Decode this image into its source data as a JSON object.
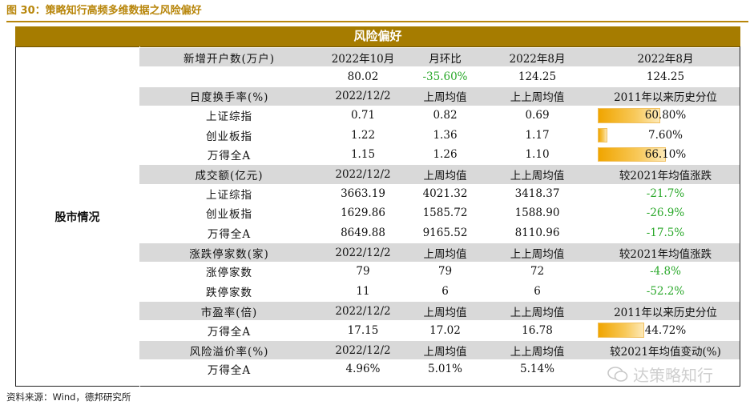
{
  "figure_title": "图 30：策略知行高频多维数据之风险偏好",
  "header": "风险偏好",
  "row_label": "股市情况",
  "sections": [
    {
      "header": [
        "新增开户数(万户)",
        "2022年10月",
        "月环比",
        "2022年8月",
        "2022年8月"
      ],
      "rows": [
        {
          "name": "",
          "v1": "80.02",
          "v2": "-35.60%",
          "v3": "124.25",
          "v4": "124.25",
          "v2_green": true
        }
      ]
    },
    {
      "header": [
        "日度换手率(%)",
        "2022/12/2",
        "上周均值",
        "上上周均值",
        "2011年以来历史分位"
      ],
      "rows": [
        {
          "name": "上证综指",
          "v1": "0.71",
          "v2": "0.82",
          "v3": "0.69",
          "v4": "60.80%",
          "pct": 0.608
        },
        {
          "name": "创业板指",
          "v1": "1.22",
          "v2": "1.36",
          "v3": "1.17",
          "v4": "7.60%",
          "pct": 0.076
        },
        {
          "name": "万得全A",
          "v1": "1.15",
          "v2": "1.26",
          "v3": "1.10",
          "v4": "66.10%",
          "pct": 0.661
        }
      ]
    },
    {
      "header": [
        "成交额(亿元)",
        "2022/12/2",
        "上周均值",
        "上上周均值",
        "较2021年均值涨跌"
      ],
      "rows": [
        {
          "name": "上证综指",
          "v1": "3663.19",
          "v2": "4021.32",
          "v3": "3418.37",
          "v4": "-21.7%",
          "v4_green": true
        },
        {
          "name": "创业板指",
          "v1": "1629.86",
          "v2": "1585.72",
          "v3": "1588.90",
          "v4": "-26.9%",
          "v4_green": true
        },
        {
          "name": "万得全A",
          "v1": "8649.88",
          "v2": "9165.52",
          "v3": "8110.96",
          "v4": "-17.5%",
          "v4_green": true
        }
      ]
    },
    {
      "header": [
        "涨跌停家数(家)",
        "2022/12/2",
        "上周均值",
        "上上周均值",
        "较2021年均值涨跌"
      ],
      "rows": [
        {
          "name": "涨停家数",
          "v1": "79",
          "v2": "79",
          "v3": "72",
          "v4": "-4.8%",
          "v4_green": true
        },
        {
          "name": "跌停家数",
          "v1": "11",
          "v2": "6",
          "v3": "6",
          "v4": "-52.2%",
          "v4_green": true
        }
      ]
    },
    {
      "header": [
        "市盈率(倍)",
        "2022/12/2",
        "上周均值",
        "上上周均值",
        "2011年以来历史分位"
      ],
      "rows": [
        {
          "name": "万得全A",
          "v1": "17.15",
          "v2": "17.02",
          "v3": "16.78",
          "v4": "44.72%",
          "pct": 0.4472
        }
      ]
    },
    {
      "header": [
        "风险溢价率(%)",
        "2022/12/2",
        "上周均值",
        "上上周均值",
        "较2021年均值变动(%)"
      ],
      "rows": [
        {
          "name": "万得全A",
          "v1": "4.96%",
          "v2": "5.01%",
          "v3": "5.14%",
          "v4": ""
        }
      ]
    }
  ],
  "source": "资料来源：Wind，德邦研究所",
  "watermark": "达策略知行",
  "colors": {
    "accent": "#b8860b",
    "band": "#a67c00",
    "header_gray": "#d9d9d9",
    "green": "#2aa82a",
    "bar": "#f0a500"
  }
}
